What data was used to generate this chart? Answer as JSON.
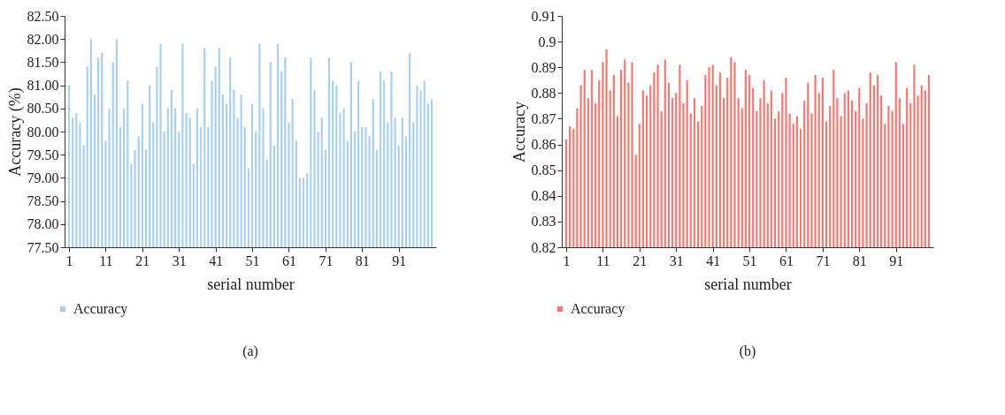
{
  "chart_data": [
    {
      "type": "bar",
      "xlabel": "serial number",
      "ylabel": "Accuracy (%)",
      "legend": "bottom left",
      "grid": false,
      "annotations": [
        "(a)"
      ],
      "x": [
        1,
        2,
        3,
        4,
        5,
        6,
        7,
        8,
        9,
        10,
        11,
        12,
        13,
        14,
        15,
        16,
        17,
        18,
        19,
        20,
        21,
        22,
        23,
        24,
        25,
        26,
        27,
        28,
        29,
        30,
        31,
        32,
        33,
        34,
        35,
        36,
        37,
        38,
        39,
        40,
        41,
        42,
        43,
        44,
        45,
        46,
        47,
        48,
        49,
        50,
        51,
        52,
        53,
        54,
        55,
        56,
        57,
        58,
        59,
        60,
        61,
        62,
        63,
        64,
        65,
        66,
        67,
        68,
        69,
        70,
        71,
        72,
        73,
        74,
        75,
        76,
        77,
        78,
        79,
        80,
        81,
        82,
        83,
        84,
        85,
        86,
        87,
        88,
        89,
        90,
        91,
        92,
        93,
        94,
        95,
        96,
        97,
        98,
        99,
        100
      ],
      "xlim": [
        1,
        100
      ],
      "xticks": [
        1,
        11,
        21,
        31,
        41,
        51,
        61,
        71,
        81,
        91
      ],
      "ylim": [
        77.5,
        82.5
      ],
      "yticks": [
        {
          "value": 77.5,
          "label": "77.50"
        },
        {
          "value": 78,
          "label": "78.00"
        },
        {
          "value": 78.5,
          "label": "78.50"
        },
        {
          "value": 79,
          "label": "79.00"
        },
        {
          "value": 79.5,
          "label": "79.50"
        },
        {
          "value": 80,
          "label": "80.00"
        },
        {
          "value": 80.5,
          "label": "80.50"
        },
        {
          "value": 81,
          "label": "81.00"
        },
        {
          "value": 81.5,
          "label": "81.50"
        },
        {
          "value": 82,
          "label": "82.00"
        },
        {
          "value": 82.5,
          "label": "82.50"
        }
      ],
      "series": [
        {
          "name": "Accuracy",
          "color": "#a9d0ee",
          "values": [
            81.0,
            80.3,
            80.4,
            80.2,
            79.7,
            81.4,
            82.0,
            80.8,
            81.6,
            81.7,
            79.8,
            80.5,
            81.5,
            82.0,
            80.1,
            80.5,
            81.1,
            79.3,
            79.6,
            79.9,
            80.6,
            79.6,
            81.0,
            80.2,
            81.4,
            81.9,
            80.0,
            80.5,
            80.9,
            80.5,
            80.0,
            81.9,
            80.4,
            80.3,
            79.3,
            80.5,
            80.1,
            81.8,
            80.1,
            81.1,
            81.4,
            81.8,
            80.8,
            80.6,
            81.6,
            80.9,
            80.3,
            80.8,
            80.1,
            79.2,
            80.6,
            80.0,
            81.9,
            80.5,
            79.4,
            81.5,
            79.7,
            81.9,
            81.3,
            81.6,
            80.2,
            80.7,
            79.8,
            79.0,
            79.0,
            79.1,
            81.6,
            80.9,
            80.0,
            80.3,
            79.6,
            81.6,
            81.1,
            81.0,
            80.4,
            80.5,
            79.8,
            81.5,
            80.0,
            81.1,
            80.1,
            80.1,
            79.9,
            80.7,
            79.6,
            81.3,
            81.1,
            80.2,
            81.3,
            80.3,
            79.7,
            80.3,
            79.9,
            81.7,
            80.2,
            81.0,
            80.9,
            81.1,
            80.6,
            80.7
          ]
        }
      ]
    },
    {
      "type": "bar",
      "xlabel": "serial number",
      "ylabel": "Accuracy",
      "legend": "bottom left",
      "grid": false,
      "annotations": [
        "(b)"
      ],
      "x": [
        1,
        2,
        3,
        4,
        5,
        6,
        7,
        8,
        9,
        10,
        11,
        12,
        13,
        14,
        15,
        16,
        17,
        18,
        19,
        20,
        21,
        22,
        23,
        24,
        25,
        26,
        27,
        28,
        29,
        30,
        31,
        32,
        33,
        34,
        35,
        36,
        37,
        38,
        39,
        40,
        41,
        42,
        43,
        44,
        45,
        46,
        47,
        48,
        49,
        50,
        51,
        52,
        53,
        54,
        55,
        56,
        57,
        58,
        59,
        60,
        61,
        62,
        63,
        64,
        65,
        66,
        67,
        68,
        69,
        70,
        71,
        72,
        73,
        74,
        75,
        76,
        77,
        78,
        79,
        80,
        81,
        82,
        83,
        84,
        85,
        86,
        87,
        88,
        89,
        90,
        91,
        92,
        93,
        94,
        95,
        96,
        97,
        98,
        99,
        100
      ],
      "xlim": [
        1,
        100
      ],
      "xticks": [
        1,
        11,
        21,
        31,
        41,
        51,
        61,
        71,
        81,
        91
      ],
      "ylim": [
        0.82,
        0.91
      ],
      "yticks": [
        0.82,
        0.83,
        0.84,
        0.85,
        0.86,
        0.87,
        0.88,
        0.89,
        0.9,
        0.91
      ],
      "series": [
        {
          "name": "Accuracy",
          "color": "#f07a74",
          "values": [
            0.862,
            0.867,
            0.866,
            0.874,
            0.883,
            0.889,
            0.878,
            0.889,
            0.876,
            0.885,
            0.892,
            0.897,
            0.881,
            0.887,
            0.871,
            0.889,
            0.893,
            0.884,
            0.892,
            0.856,
            0.868,
            0.881,
            0.879,
            0.883,
            0.888,
            0.891,
            0.873,
            0.893,
            0.884,
            0.878,
            0.88,
            0.891,
            0.876,
            0.885,
            0.872,
            0.878,
            0.869,
            0.875,
            0.887,
            0.89,
            0.891,
            0.883,
            0.888,
            0.878,
            0.886,
            0.894,
            0.892,
            0.878,
            0.874,
            0.889,
            0.887,
            0.882,
            0.873,
            0.878,
            0.885,
            0.876,
            0.881,
            0.87,
            0.873,
            0.88,
            0.886,
            0.872,
            0.868,
            0.871,
            0.866,
            0.877,
            0.884,
            0.872,
            0.887,
            0.88,
            0.886,
            0.869,
            0.875,
            0.889,
            0.878,
            0.871,
            0.88,
            0.881,
            0.877,
            0.873,
            0.882,
            0.87,
            0.876,
            0.888,
            0.883,
            0.887,
            0.879,
            0.868,
            0.875,
            0.873,
            0.892,
            0.878,
            0.868,
            0.882,
            0.876,
            0.891,
            0.879,
            0.883,
            0.881,
            0.887
          ]
        }
      ]
    }
  ]
}
